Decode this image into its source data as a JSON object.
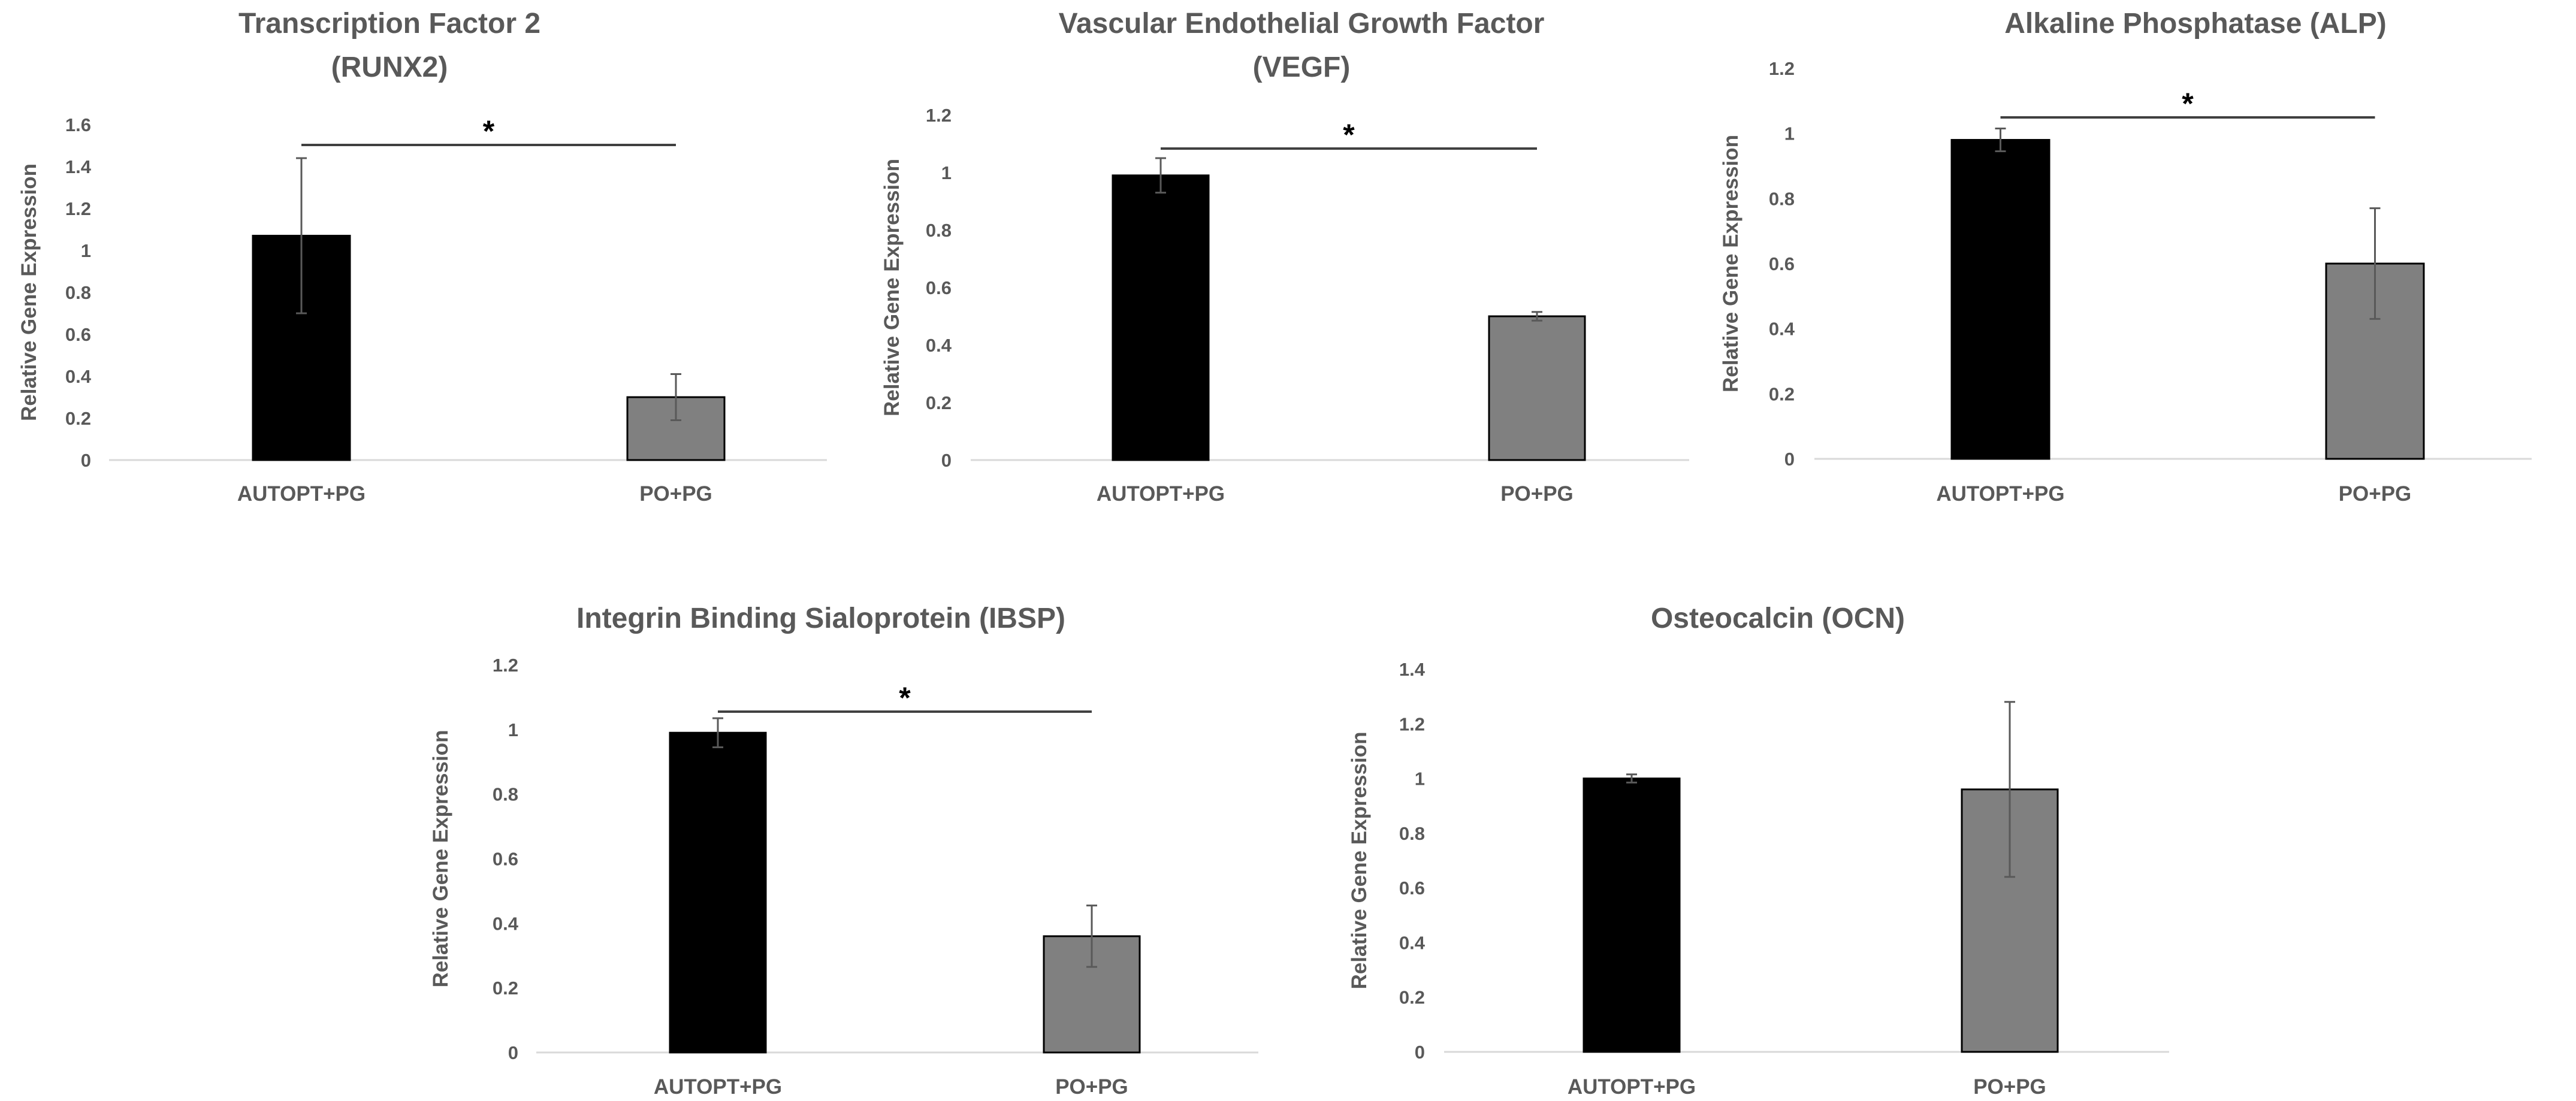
{
  "chart_data": [
    {
      "type": "bar",
      "title": [
        "Transcription Factor 2",
        "(RUNX2)"
      ],
      "ylabel": "Relative Gene Expression",
      "xlabel": "",
      "categories": [
        "AUTOPT+PG",
        "PO+PG"
      ],
      "values": [
        1.07,
        0.3
      ],
      "errors": [
        0.37,
        0.11
      ],
      "ylim": [
        0,
        1.6
      ],
      "yticks": [
        "0",
        "0.2",
        "0.4",
        "0.6",
        "0.8",
        "1",
        "1.2",
        "1.4",
        "1.6"
      ],
      "bar_colors": [
        "#000000",
        "#808080"
      ],
      "significance": "*",
      "grid": false
    },
    {
      "type": "bar",
      "title": [
        "Vascular Endothelial Growth Factor",
        "(VEGF)"
      ],
      "ylabel": "Relative Gene Expression",
      "xlabel": "",
      "categories": [
        "AUTOPT+PG",
        "PO+PG"
      ],
      "values": [
        0.99,
        0.5
      ],
      "errors": [
        0.06,
        0.015
      ],
      "ylim": [
        0,
        1.2
      ],
      "yticks": [
        "0",
        "0.2",
        "0.4",
        "0.6",
        "0.8",
        "1",
        "1.2"
      ],
      "bar_colors": [
        "#000000",
        "#808080"
      ],
      "significance": "*",
      "grid": false
    },
    {
      "type": "bar",
      "title": [
        "Alkaline Phosphatase (ALP)"
      ],
      "ylabel": "Relative Gene Expression",
      "xlabel": "",
      "categories": [
        "AUTOPT+PG",
        "PO+PG"
      ],
      "values": [
        0.98,
        0.6
      ],
      "errors": [
        0.035,
        0.17
      ],
      "ylim": [
        0,
        1.2
      ],
      "yticks": [
        "0",
        "0.2",
        "0.4",
        "0.6",
        "0.8",
        "1",
        "1.2"
      ],
      "bar_colors": [
        "#000000",
        "#808080"
      ],
      "significance": "*",
      "grid": false
    },
    {
      "type": "bar",
      "title": [
        "Integrin Binding Sialoprotein (IBSP)"
      ],
      "ylabel": "Relative Gene Expression",
      "xlabel": "",
      "categories": [
        "AUTOPT+PG",
        "PO+PG"
      ],
      "values": [
        0.99,
        0.36
      ],
      "errors": [
        0.045,
        0.095
      ],
      "ylim": [
        0,
        1.2
      ],
      "yticks": [
        "0",
        "0.2",
        "0.4",
        "0.6",
        "0.8",
        "1",
        "1.2"
      ],
      "bar_colors": [
        "#000000",
        "#808080"
      ],
      "significance": "*",
      "grid": false
    },
    {
      "type": "bar",
      "title": [
        "Osteocalcin (OCN)"
      ],
      "ylabel": "Relative Gene Expression",
      "xlabel": "",
      "categories": [
        "AUTOPT+PG",
        "PO+PG"
      ],
      "values": [
        1.0,
        0.96
      ],
      "errors": [
        0.015,
        0.32
      ],
      "ylim": [
        0,
        1.4
      ],
      "yticks": [
        "0",
        "0.2",
        "0.4",
        "0.6",
        "0.8",
        "1",
        "1.2",
        "1.4"
      ],
      "bar_colors": [
        "#000000",
        "#808080"
      ],
      "significance": "",
      "grid": false
    }
  ]
}
